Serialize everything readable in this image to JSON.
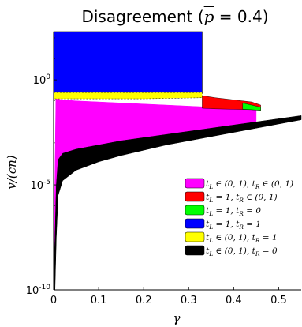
{
  "chart_data": {
    "type": "area",
    "title_prefix": "Disagreement (",
    "title_pbar": "p",
    "title_suffix": " = 0.4)",
    "xlabel": "γ",
    "ylabel": "v/(cn)",
    "x_scale": "linear",
    "y_scale": "log",
    "xlim": [
      0,
      0.55
    ],
    "ylim_log10": [
      -10,
      2.3
    ],
    "x_ticks": [
      0,
      0.1,
      0.2,
      0.3,
      0.4,
      0.5
    ],
    "x_tick_labels": [
      "0",
      "0.1",
      "0.2",
      "0.3",
      "0.4",
      "0.5"
    ],
    "y_ticks_log10": [
      -10,
      -5,
      0
    ],
    "y_tick_labels": [
      {
        "base": "10",
        "exp": "-10"
      },
      {
        "base": "10",
        "exp": "-5"
      },
      {
        "base": "10",
        "exp": "0"
      }
    ],
    "legend_position": "lower-right",
    "series": [
      {
        "name": "t_L ∈ (0,1), t_R ∈ (0,1)",
        "color": "#ff00ff",
        "region_note": "upper boundary (log10 v/cn) vs γ; lower boundary is black-region top",
        "x": [
          0.005,
          0.02,
          0.05,
          0.1,
          0.15,
          0.2,
          0.25,
          0.3,
          0.35,
          0.4,
          0.45
        ],
        "y_upper_log10": [
          -0.9,
          -0.95,
          -1.0,
          -1.05,
          -1.1,
          -1.15,
          -1.2,
          -1.25,
          -1.3,
          -1.35,
          -1.45
        ]
      },
      {
        "name": "t_L = 1, t_R ∈ (0,1)",
        "color": "#ff0000",
        "x": [
          0.33,
          0.36,
          0.4,
          0.44,
          0.46
        ],
        "y_upper_log10": [
          -0.75,
          -0.85,
          -0.95,
          -1.05,
          -1.2
        ],
        "y_lower_log10": [
          -1.35,
          -1.38,
          -1.4,
          -1.42,
          -1.45
        ]
      },
      {
        "name": "t_L = 1, t_R = 0",
        "color": "#00ff00",
        "x": [
          0.42,
          0.44,
          0.46
        ],
        "y_upper_log10": [
          -1.1,
          -1.2,
          -1.3
        ],
        "y_lower_log10": [
          -1.4,
          -1.42,
          -1.45
        ]
      },
      {
        "name": "t_L = 1, t_R = 1",
        "color": "#0000ff",
        "x": [
          0.0,
          0.33
        ],
        "y_upper_log10": [
          2.3,
          2.3
        ],
        "y_lower_log10": [
          -0.65,
          -0.65
        ]
      },
      {
        "name": "t_L ∈ (0,1), t_R = 1",
        "color": "#ffff00",
        "x": [
          0.0,
          0.1,
          0.2,
          0.33
        ],
        "y_upper_log10": [
          -0.6,
          -0.6,
          -0.6,
          -0.6
        ],
        "y_lower_log10": [
          -0.9,
          -0.9,
          -0.9,
          -0.85
        ]
      },
      {
        "name": "t_L ∈ (0,1), t_R = 0",
        "color": "#000000",
        "x": [
          0.0,
          0.003,
          0.006,
          0.01,
          0.02,
          0.05,
          0.1,
          0.15,
          0.2,
          0.25,
          0.3,
          0.35,
          0.4,
          0.45,
          0.5,
          0.55
        ],
        "y_upper_log10": [
          -9.5,
          -7.5,
          -5.0,
          -3.8,
          -3.5,
          -3.3,
          -3.1,
          -2.9,
          -2.75,
          -2.6,
          -2.45,
          -2.3,
          -2.15,
          -2.0,
          -1.85,
          -1.7
        ],
        "y_lower_log10": [
          -10,
          -10,
          -7.5,
          -5.5,
          -4.8,
          -4.3,
          -3.9,
          -3.6,
          -3.35,
          -3.1,
          -2.9,
          -2.7,
          -2.5,
          -2.3,
          -2.1,
          -1.9
        ]
      }
    ],
    "legend_items": [
      {
        "pre": "t",
        "sub": "L",
        "text": " ∈ (0, 1), ",
        "pre2": "t",
        "sub2": "R",
        "text2": " ∈ (0, 1)",
        "color": "#ff00ff"
      },
      {
        "pre": "t",
        "sub": "L",
        "text": " = 1, ",
        "pre2": "t",
        "sub2": "R",
        "text2": " ∈ (0, 1)",
        "color": "#ff0000"
      },
      {
        "pre": "t",
        "sub": "L",
        "text": " = 1, ",
        "pre2": "t",
        "sub2": "R",
        "text2": " = 0",
        "color": "#00ff00"
      },
      {
        "pre": "t",
        "sub": "L",
        "text": " = 1, ",
        "pre2": "t",
        "sub2": "R",
        "text2": " = 1",
        "color": "#0000ff"
      },
      {
        "pre": "t",
        "sub": "L",
        "text": " ∈ (0, 1), ",
        "pre2": "t",
        "sub2": "R",
        "text2": " = 1",
        "color": "#ffff00"
      },
      {
        "pre": "t",
        "sub": "L",
        "text": " ∈ (0, 1), ",
        "pre2": "t",
        "sub2": "R",
        "text2": " = 0",
        "color": "#000000"
      }
    ]
  }
}
